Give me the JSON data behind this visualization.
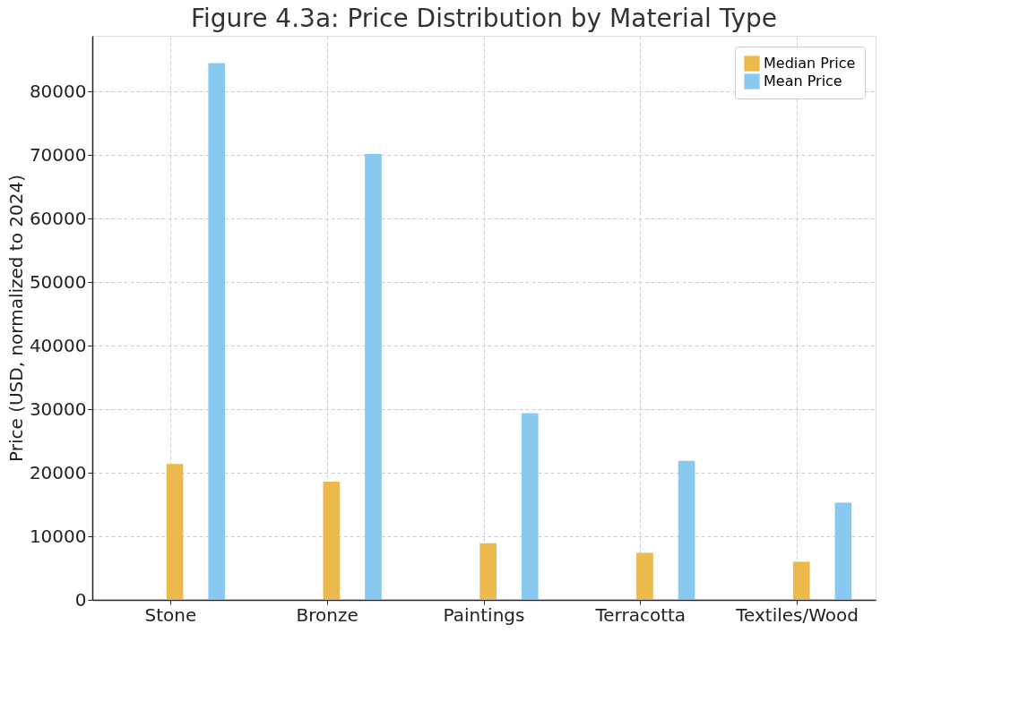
{
  "chart_data": {
    "type": "bar",
    "title": "Figure 4.3a: Price Distribution by Material Type",
    "ylabel": "Price (USD, normalized to 2024)",
    "categories": [
      "Stone",
      "Bronze",
      "Paintings",
      "Terracotta",
      "Textiles/Wood"
    ],
    "series": [
      {
        "name": "Median Price",
        "color": "#ecb94c",
        "values": [
          21400,
          18600,
          8900,
          7400,
          6000
        ]
      },
      {
        "name": "Mean Price",
        "color": "#89c8ef",
        "values": [
          84500,
          70200,
          29400,
          21900,
          15300
        ]
      }
    ],
    "ylim": [
      0,
      88800
    ],
    "yticks": [
      0,
      10000,
      20000,
      30000,
      40000,
      50000,
      60000,
      70000,
      80000
    ],
    "grid": true,
    "legend": "top right"
  }
}
